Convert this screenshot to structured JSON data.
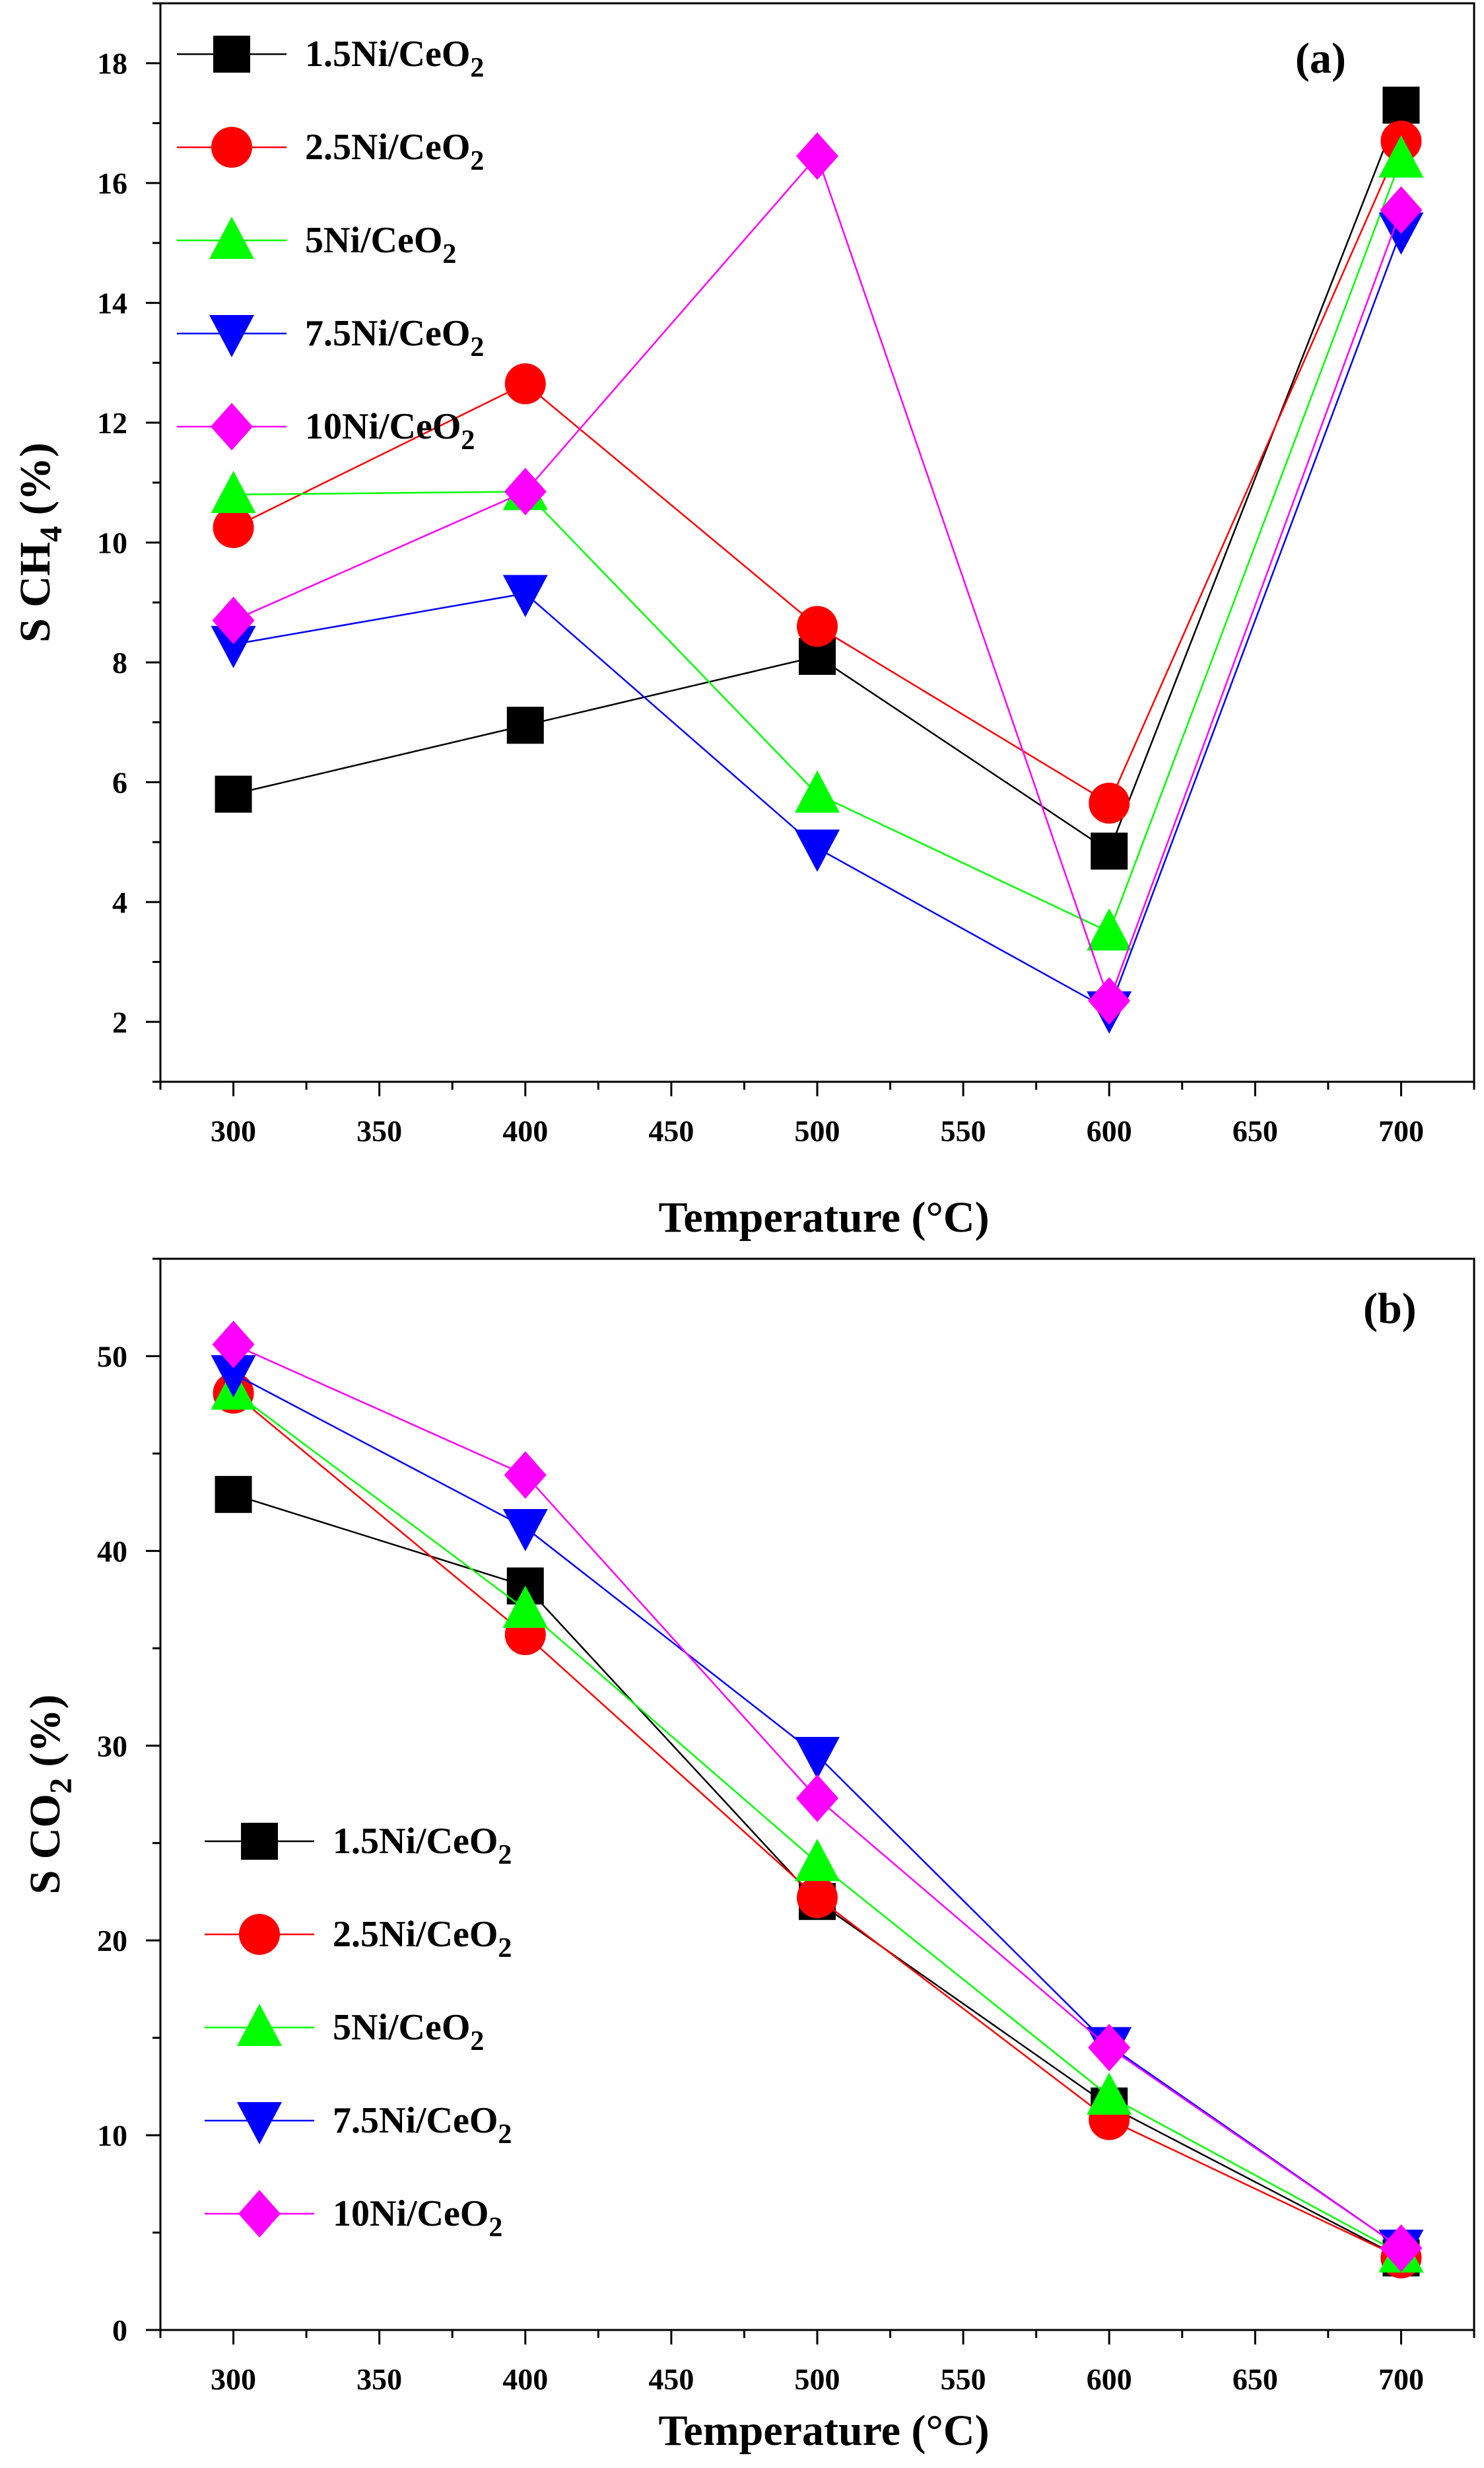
{
  "chart_data": [
    {
      "type": "line",
      "panel_label": "(a)",
      "xlabel": "Temperature (°C)",
      "ylabel": "S CH",
      "ylabel_subscript": "4",
      "ylabel_suffix": " (%)",
      "xlim": [
        275,
        725
      ],
      "ylim": [
        1,
        19
      ],
      "xticks": [
        300,
        350,
        400,
        450,
        500,
        550,
        600,
        650,
        700
      ],
      "yticks": [
        2,
        4,
        6,
        8,
        10,
        12,
        14,
        16,
        18
      ],
      "legend_position": "top-left",
      "x": [
        300,
        400,
        500,
        600,
        700
      ],
      "series": [
        {
          "name": "1.5Ni/CeO2",
          "label": "1.5Ni/CeO",
          "label_subscript": "2",
          "color": "#000000",
          "marker": "square",
          "values": [
            5.8,
            6.95,
            8.1,
            4.85,
            17.3
          ]
        },
        {
          "name": "2.5Ni/CeO2",
          "label": "2.5Ni/CeO",
          "label_subscript": "2",
          "color": "#ff0000",
          "marker": "circle",
          "values": [
            10.25,
            12.65,
            8.6,
            5.65,
            16.7
          ]
        },
        {
          "name": "5Ni/CeO2",
          "label": "5Ni/CeO",
          "label_subscript": "2",
          "color": "#00ff00",
          "marker": "triangle-up",
          "values": [
            10.8,
            10.85,
            5.8,
            3.5,
            16.4
          ]
        },
        {
          "name": "7.5Ni/CeO2",
          "label": "7.5Ni/CeO",
          "label_subscript": "2",
          "color": "#0000ff",
          "marker": "triangle-down",
          "values": [
            8.3,
            9.15,
            4.9,
            2.2,
            15.2
          ]
        },
        {
          "name": "10Ni/CeO2",
          "label": "10Ni/CeO",
          "label_subscript": "2",
          "color": "#ff00ff",
          "marker": "diamond",
          "values": [
            8.7,
            10.85,
            16.45,
            2.35,
            15.55
          ]
        }
      ]
    },
    {
      "type": "line",
      "panel_label": "(b)",
      "xlabel": "Temperature (°C)",
      "ylabel": "S CO",
      "ylabel_subscript": "2",
      "ylabel_suffix": " (%)",
      "xlim": [
        275,
        725
      ],
      "ylim": [
        0,
        55
      ],
      "xticks": [
        300,
        350,
        400,
        450,
        500,
        550,
        600,
        650,
        700
      ],
      "yticks": [
        0,
        10,
        20,
        30,
        40,
        50
      ],
      "legend_position": "bottom-left",
      "x": [
        300,
        400,
        500,
        600,
        700
      ],
      "series": [
        {
          "name": "1.5Ni/CeO2",
          "label": "1.5Ni/CeO",
          "label_subscript": "2",
          "color": "#000000",
          "marker": "square",
          "values": [
            42.9,
            38.2,
            22.0,
            11.5,
            3.7
          ]
        },
        {
          "name": "2.5Ni/CeO2",
          "label": "2.5Ni/CeO",
          "label_subscript": "2",
          "color": "#ff0000",
          "marker": "circle",
          "values": [
            48.1,
            35.7,
            22.2,
            10.8,
            3.7
          ]
        },
        {
          "name": "5Ni/CeO2",
          "label": "5Ni/CeO",
          "label_subscript": "2",
          "color": "#00ff00",
          "marker": "triangle-up",
          "values": [
            48.2,
            37.0,
            24.0,
            12.0,
            3.9
          ]
        },
        {
          "name": "7.5Ni/CeO2",
          "label": "7.5Ni/CeO",
          "label_subscript": "2",
          "color": "#0000ff",
          "marker": "triangle-down",
          "values": [
            49.1,
            41.2,
            29.5,
            14.6,
            4.2
          ]
        },
        {
          "name": "10Ni/CeO2",
          "label": "10Ni/CeO",
          "label_subscript": "2",
          "color": "#ff00ff",
          "marker": "diamond",
          "values": [
            50.6,
            43.9,
            27.3,
            14.5,
            4.2
          ]
        }
      ]
    }
  ]
}
